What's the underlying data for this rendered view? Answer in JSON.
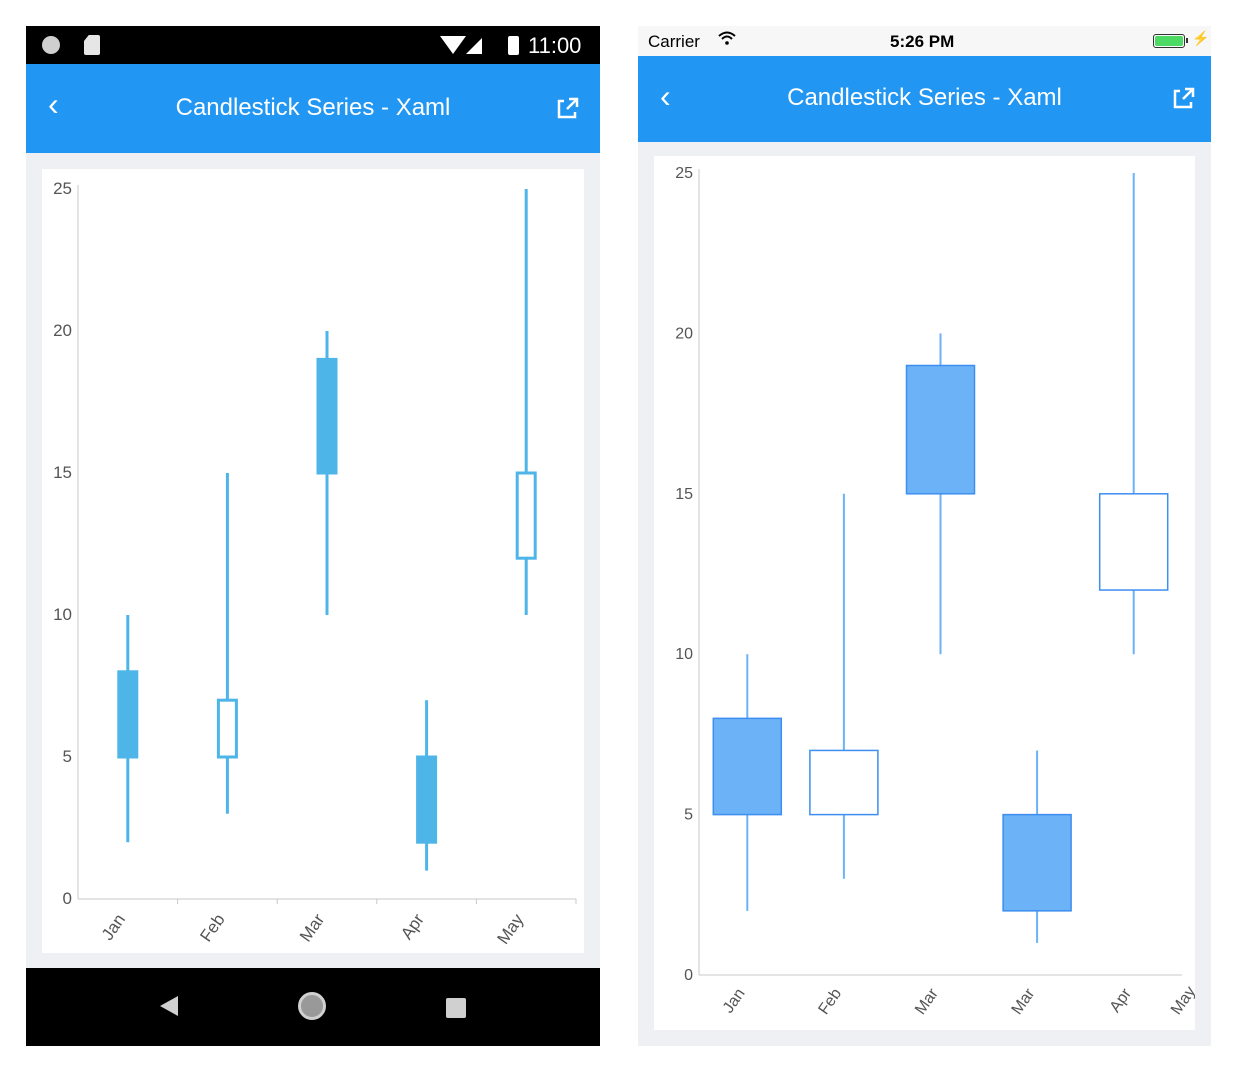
{
  "android": {
    "status": {
      "time": "11:00"
    },
    "appbar": {
      "title": "Candlestick Series - Xaml",
      "back_icon": "chevron-left-icon",
      "external_icon": "external-link-icon"
    },
    "nav": {
      "back_icon": "nav-back-icon",
      "home_icon": "nav-home-icon",
      "recent_icon": "nav-recent-icon"
    }
  },
  "ios": {
    "status": {
      "carrier": "Carrier",
      "time": "5:26 PM"
    },
    "appbar": {
      "title": "Candlestick Series - Xaml",
      "back_icon": "chevron-left-icon",
      "external_icon": "external-link-icon"
    }
  },
  "colors": {
    "appbar": "#2196f3",
    "android_candle": "#4eb5e8",
    "ios_candle_fill": "#6cb2f7",
    "ios_candle_stroke": "#3d8ef0"
  },
  "chart_data": [
    {
      "type": "candlestick",
      "categories": [
        "Jan",
        "Feb",
        "Mar",
        "Apr",
        "May"
      ],
      "ylim": [
        0,
        25
      ],
      "yticks": [
        0,
        5,
        10,
        15,
        20,
        25
      ],
      "open": [
        8,
        5,
        19,
        5,
        12
      ],
      "close": [
        5,
        7,
        15,
        2,
        15
      ],
      "high": [
        10,
        15,
        20,
        7,
        25
      ],
      "low": [
        2,
        3,
        10,
        1,
        10
      ],
      "grid": false
    },
    {
      "type": "candlestick",
      "categories": [
        "Jan",
        "Feb",
        "Mar",
        "Mar",
        "Apr"
      ],
      "extra_tick_label": "May",
      "ylim": [
        0,
        25
      ],
      "yticks": [
        0,
        5,
        10,
        15,
        20,
        25
      ],
      "open": [
        8,
        5,
        19,
        5,
        12
      ],
      "close": [
        5,
        7,
        15,
        2,
        15
      ],
      "high": [
        10,
        15,
        20,
        7,
        25
      ],
      "low": [
        2,
        3,
        10,
        1,
        10
      ],
      "grid": false
    }
  ]
}
